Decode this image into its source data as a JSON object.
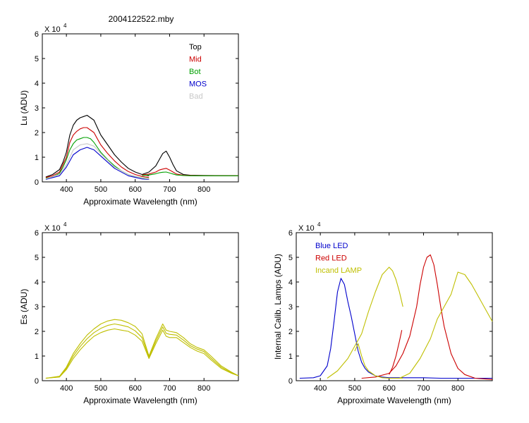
{
  "page_title": "2004122522.mby",
  "chart_data": [
    {
      "type": "line",
      "id": "lu",
      "xlabel": "Approximate Wavelength (nm)",
      "ylabel": "Lu (ADU)",
      "scale_label": "X 10",
      "scale_exp": "4",
      "xlim": [
        330,
        900
      ],
      "ylim": [
        0,
        6
      ],
      "xticks": [
        400,
        500,
        600,
        700,
        800
      ],
      "yticks": [
        0,
        1,
        2,
        3,
        4,
        5,
        6
      ],
      "legend_position": "top-right",
      "series": [
        {
          "name": "Top",
          "color": "#000000",
          "x": [
            340,
            360,
            380,
            390,
            400,
            410,
            420,
            430,
            440,
            450,
            460,
            470,
            480,
            490,
            500,
            520,
            540,
            560,
            580,
            600,
            620,
            640
          ],
          "y": [
            0.2,
            0.3,
            0.5,
            0.8,
            1.2,
            1.9,
            2.3,
            2.5,
            2.6,
            2.65,
            2.7,
            2.6,
            2.5,
            2.2,
            1.9,
            1.5,
            1.1,
            0.8,
            0.55,
            0.4,
            0.3,
            0.25
          ]
        },
        {
          "name": "Mid",
          "color": "#cc0000",
          "x": [
            340,
            360,
            380,
            390,
            400,
            410,
            420,
            430,
            440,
            450,
            460,
            470,
            480,
            490,
            500,
            520,
            540,
            560,
            580,
            600,
            620,
            640
          ],
          "y": [
            0.18,
            0.25,
            0.4,
            0.7,
            1.0,
            1.6,
            1.9,
            2.05,
            2.15,
            2.2,
            2.2,
            2.1,
            2.0,
            1.75,
            1.5,
            1.15,
            0.85,
            0.6,
            0.42,
            0.3,
            0.22,
            0.18
          ]
        },
        {
          "name": "Bot",
          "color": "#00a000",
          "x": [
            340,
            360,
            380,
            390,
            400,
            410,
            420,
            430,
            440,
            450,
            460,
            470,
            480,
            490,
            500,
            520,
            540,
            560,
            580,
            600,
            620,
            640
          ],
          "y": [
            0.15,
            0.2,
            0.35,
            0.6,
            0.9,
            1.3,
            1.55,
            1.7,
            1.75,
            1.8,
            1.8,
            1.75,
            1.6,
            1.4,
            1.2,
            0.9,
            0.65,
            0.45,
            0.3,
            0.22,
            0.16,
            0.13
          ]
        },
        {
          "name": "MOS",
          "color": "#0000cc",
          "x": [
            340,
            380,
            400,
            420,
            440,
            460,
            480,
            500,
            540,
            580,
            620,
            640
          ],
          "y": [
            0.1,
            0.25,
            0.6,
            1.1,
            1.3,
            1.4,
            1.3,
            1.05,
            0.55,
            0.25,
            0.12,
            0.1
          ]
        },
        {
          "name": "Bad",
          "color": "#c8c8c8",
          "x": [
            340,
            380,
            400,
            420,
            440,
            460,
            480,
            500,
            540,
            580,
            620,
            640
          ],
          "y": [
            0.12,
            0.3,
            0.7,
            1.3,
            1.5,
            1.55,
            1.45,
            1.15,
            0.6,
            0.3,
            0.15,
            0.12
          ]
        },
        {
          "name": "",
          "color": "#000000",
          "x": [
            620,
            640,
            660,
            670,
            680,
            690,
            700,
            710,
            720,
            740,
            760,
            800,
            900
          ],
          "y": [
            0.3,
            0.4,
            0.65,
            0.9,
            1.15,
            1.25,
            1.0,
            0.7,
            0.45,
            0.3,
            0.27,
            0.26,
            0.25
          ]
        },
        {
          "name": "",
          "color": "#cc0000",
          "x": [
            620,
            640,
            660,
            670,
            680,
            690,
            700,
            710,
            720,
            740,
            760,
            800,
            900
          ],
          "y": [
            0.28,
            0.32,
            0.4,
            0.48,
            0.52,
            0.55,
            0.48,
            0.4,
            0.32,
            0.27,
            0.26,
            0.25,
            0.25
          ]
        },
        {
          "name": "",
          "color": "#00a000",
          "x": [
            620,
            640,
            660,
            670,
            680,
            690,
            700,
            710,
            720,
            740,
            760,
            800,
            900
          ],
          "y": [
            0.26,
            0.28,
            0.33,
            0.37,
            0.39,
            0.4,
            0.36,
            0.32,
            0.28,
            0.26,
            0.25,
            0.25,
            0.25
          ]
        }
      ]
    },
    {
      "type": "line",
      "id": "es",
      "xlabel": "Approximate Wavelength (nm)",
      "ylabel": "Es (ADU)",
      "scale_label": "X 10",
      "scale_exp": "4",
      "xlim": [
        330,
        900
      ],
      "ylim": [
        0,
        6
      ],
      "xticks": [
        400,
        500,
        600,
        700,
        800
      ],
      "yticks": [
        0,
        1,
        2,
        3,
        4,
        5,
        6
      ],
      "series": [
        {
          "name": "",
          "color": "#bfbf00",
          "x": [
            340,
            380,
            400,
            420,
            440,
            460,
            480,
            500,
            520,
            540,
            560,
            580,
            600,
            620,
            640,
            660,
            680,
            690,
            700,
            720,
            740,
            760,
            780,
            800,
            820,
            850,
            880,
            900
          ],
          "y": [
            0.1,
            0.15,
            0.45,
            0.9,
            1.25,
            1.55,
            1.8,
            1.95,
            2.05,
            2.1,
            2.05,
            2.0,
            1.85,
            1.6,
            0.9,
            1.5,
            2.05,
            1.8,
            1.75,
            1.75,
            1.55,
            1.35,
            1.2,
            1.1,
            0.85,
            0.5,
            0.3,
            0.2
          ]
        },
        {
          "name": "",
          "color": "#bfbf00",
          "x": [
            340,
            380,
            400,
            420,
            440,
            460,
            480,
            500,
            520,
            540,
            560,
            580,
            600,
            620,
            640,
            660,
            680,
            690,
            700,
            720,
            740,
            760,
            780,
            800,
            820,
            850,
            880,
            900
          ],
          "y": [
            0.1,
            0.18,
            0.55,
            1.1,
            1.5,
            1.85,
            2.1,
            2.3,
            2.42,
            2.48,
            2.45,
            2.35,
            2.2,
            1.9,
            1.0,
            1.7,
            2.3,
            2.05,
            2.0,
            1.95,
            1.75,
            1.5,
            1.35,
            1.25,
            1.0,
            0.6,
            0.35,
            0.2
          ]
        },
        {
          "name": "",
          "color": "#bfbf00",
          "x": [
            340,
            380,
            400,
            420,
            440,
            460,
            480,
            500,
            520,
            540,
            560,
            580,
            600,
            620,
            640,
            660,
            680,
            690,
            700,
            720,
            740,
            760,
            780,
            800,
            820,
            850,
            880,
            900
          ],
          "y": [
            0.1,
            0.16,
            0.5,
            1.0,
            1.38,
            1.7,
            1.95,
            2.12,
            2.24,
            2.3,
            2.25,
            2.18,
            2.02,
            1.75,
            0.95,
            1.6,
            2.18,
            1.92,
            1.88,
            1.85,
            1.65,
            1.42,
            1.28,
            1.18,
            0.92,
            0.55,
            0.32,
            0.2
          ]
        }
      ]
    },
    {
      "type": "line",
      "id": "lamps",
      "xlabel": "Approximate Wavelength (nm)",
      "ylabel": "Internal Calib. Lamps (ADU)",
      "scale_label": "X 10",
      "scale_exp": "4",
      "xlim": [
        330,
        900
      ],
      "ylim": [
        0,
        6
      ],
      "xticks": [
        400,
        500,
        600,
        700,
        800
      ],
      "yticks": [
        0,
        1,
        2,
        3,
        4,
        5,
        6
      ],
      "legend_position": "top-left",
      "series": [
        {
          "name": "Blue LED",
          "color": "#0000cc",
          "x": [
            340,
            380,
            400,
            420,
            430,
            440,
            450,
            460,
            470,
            480,
            490,
            500,
            510,
            520,
            530,
            540,
            560,
            580,
            600,
            650,
            700,
            750,
            800,
            900
          ],
          "y": [
            0.1,
            0.12,
            0.2,
            0.6,
            1.3,
            2.4,
            3.6,
            4.15,
            3.9,
            3.2,
            2.6,
            1.9,
            1.2,
            0.75,
            0.5,
            0.35,
            0.2,
            0.15,
            0.12,
            0.12,
            0.12,
            0.1,
            0.1,
            0.1
          ]
        },
        {
          "name": "Red LED",
          "color": "#cc0000",
          "x": [
            520,
            560,
            600,
            620,
            640,
            660,
            680,
            690,
            700,
            710,
            720,
            730,
            740,
            750,
            760,
            780,
            800,
            820,
            850,
            900
          ],
          "y": [
            0.1,
            0.15,
            0.3,
            0.6,
            1.1,
            1.8,
            3.0,
            3.9,
            4.6,
            5.0,
            5.1,
            4.7,
            3.9,
            3.0,
            2.2,
            1.1,
            0.5,
            0.25,
            0.1,
            0.05
          ]
        },
        {
          "name": "",
          "color": "#cc0000",
          "x": [
            600,
            610,
            620,
            630,
            637
          ],
          "y": [
            0.25,
            0.55,
            1.0,
            1.6,
            2.05
          ]
        },
        {
          "name": "Incand LAMP",
          "color": "#bfbf00",
          "x": [
            420,
            450,
            480,
            500,
            520,
            540,
            560,
            580,
            600,
            610,
            620,
            630,
            640
          ],
          "y": [
            0.1,
            0.4,
            0.9,
            1.4,
            1.9,
            2.8,
            3.6,
            4.3,
            4.6,
            4.45,
            4.1,
            3.6,
            3.0
          ]
        },
        {
          "name": "",
          "color": "#bfbf00",
          "x": [
            500,
            510,
            520,
            530,
            540,
            560,
            580,
            600,
            620,
            640
          ],
          "y": [
            1.2,
            1.5,
            1.0,
            0.6,
            0.4,
            0.2,
            0.12,
            0.1,
            0.1,
            0.1
          ]
        },
        {
          "name": "",
          "color": "#bfbf00",
          "x": [
            630,
            660,
            690,
            720,
            740,
            760,
            780,
            800,
            820,
            840,
            860,
            880,
            900
          ],
          "y": [
            0.1,
            0.3,
            0.9,
            1.7,
            2.5,
            3.0,
            3.5,
            4.4,
            4.3,
            3.9,
            3.4,
            2.9,
            2.4
          ]
        }
      ]
    }
  ]
}
